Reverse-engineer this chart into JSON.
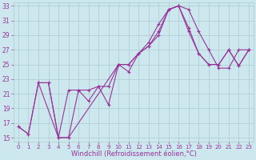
{
  "xlabel": "Windchill (Refroidissement éolien,°C)",
  "bg_color": "#cce8ee",
  "line_color": "#993399",
  "grid_color": "#aacccc",
  "xmin": -0.5,
  "xmax": 23.5,
  "ymin": 14.5,
  "ymax": 33.5,
  "yticks": [
    15,
    17,
    19,
    21,
    23,
    25,
    27,
    29,
    31,
    33
  ],
  "xticks": [
    0,
    1,
    2,
    3,
    4,
    5,
    6,
    7,
    8,
    9,
    10,
    11,
    12,
    13,
    14,
    15,
    16,
    17,
    18,
    19,
    20,
    21,
    22,
    23
  ],
  "line1_x": [
    0,
    1,
    2,
    3,
    4,
    5,
    6,
    7,
    8,
    9,
    10,
    11,
    12,
    13,
    14,
    15,
    16,
    17,
    18,
    19,
    20,
    21,
    22,
    23
  ],
  "line1_y": [
    16.5,
    15.5,
    22.5,
    22.5,
    15.0,
    21.5,
    21.5,
    20.0,
    22.0,
    19.5,
    25.0,
    24.0,
    26.5,
    28.0,
    30.5,
    32.5,
    33.0,
    32.5,
    29.5,
    27.0,
    24.5,
    24.5,
    27.0,
    27.0
  ],
  "line2_x": [
    0,
    1,
    2,
    3,
    4,
    5,
    6,
    7,
    8,
    9,
    10,
    11,
    12,
    13,
    14,
    15,
    16,
    17,
    18,
    19,
    20,
    21,
    22,
    23
  ],
  "line2_y": [
    16.5,
    15.5,
    22.5,
    22.5,
    15.0,
    15.0,
    21.5,
    21.5,
    22.0,
    22.0,
    25.0,
    25.0,
    26.5,
    27.5,
    29.0,
    32.5,
    33.0,
    29.5,
    26.5,
    25.0,
    25.0,
    27.0,
    24.8,
    27.0
  ],
  "line3_x": [
    2,
    4,
    5,
    10,
    11,
    12,
    13,
    14,
    15,
    16,
    17,
    18,
    19,
    20,
    21,
    22,
    23
  ],
  "line3_y": [
    22.5,
    15.0,
    15.0,
    25.0,
    25.0,
    26.5,
    27.5,
    29.5,
    32.5,
    33.0,
    30.0,
    26.5,
    25.0,
    25.0,
    27.0,
    24.8,
    27.0
  ],
  "marker_size": 3,
  "linewidth": 0.8,
  "tick_fontsize": 5.5,
  "xlabel_fontsize": 6
}
